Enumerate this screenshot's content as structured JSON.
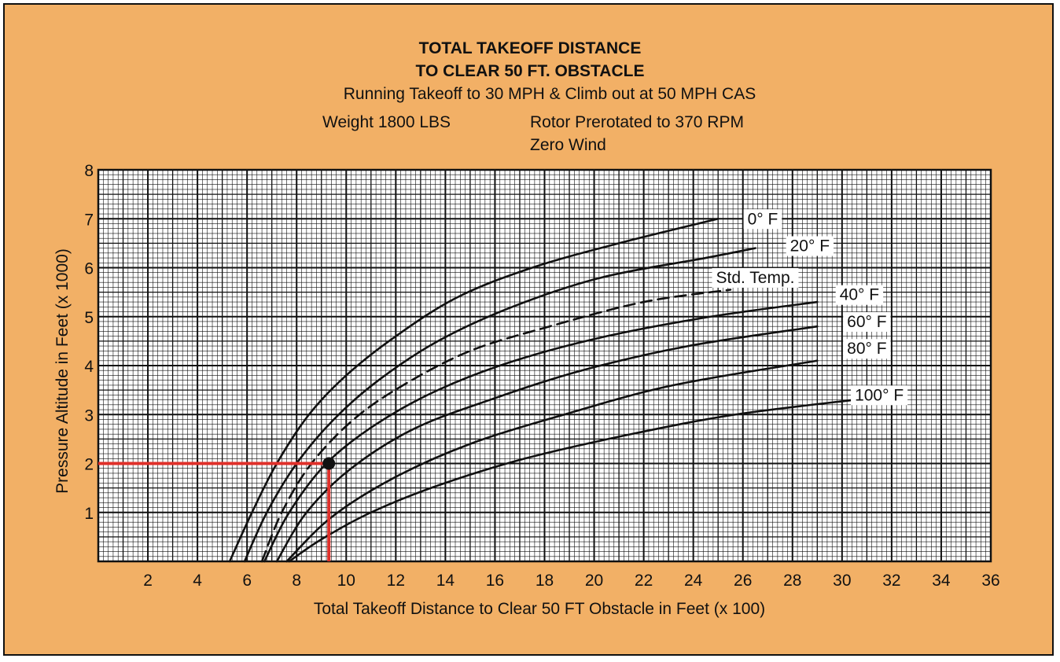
{
  "chart_data": {
    "type": "line",
    "title": [
      "TOTAL TAKEOFF DISTANCE",
      "TO CLEAR 50 FT. OBSTACLE"
    ],
    "subtitle": "Running Takeoff to 30 MPH & Climb out at 50 MPH CAS",
    "notes": {
      "weight": "Weight 1800 LBS",
      "rotor": "Rotor Prerotated to 370 RPM",
      "wind": "Zero Wind"
    },
    "xlabel": "Total Takeoff Distance to Clear 50 FT Obstacle in Feet (x 100)",
    "ylabel": "Pressure Altitude in Feet (x 1000)",
    "xlim": [
      0,
      36
    ],
    "ylim": [
      0,
      8
    ],
    "xticks": [
      2,
      4,
      6,
      8,
      10,
      12,
      14,
      16,
      18,
      20,
      22,
      24,
      26,
      28,
      30,
      32,
      34,
      36
    ],
    "yticks": [
      1,
      2,
      3,
      4,
      5,
      6,
      7,
      8
    ],
    "grid": true,
    "series": [
      {
        "name": "0° F",
        "style": "solid",
        "x": [
          5.3,
          6.2,
          7.2,
          8.5,
          10.0,
          12.0,
          14.5,
          17.5,
          21.0,
          25.0
        ],
        "y": [
          0,
          1.0,
          2.0,
          3.0,
          3.8,
          4.6,
          5.4,
          6.0,
          6.5,
          7.0
        ]
      },
      {
        "name": "20° F",
        "style": "solid",
        "x": [
          5.9,
          6.8,
          8.0,
          9.5,
          11.3,
          13.7,
          16.7,
          20.3,
          24.5,
          26.5
        ],
        "y": [
          0,
          1.0,
          2.0,
          2.9,
          3.7,
          4.5,
          5.2,
          5.8,
          6.2,
          6.4
        ]
      },
      {
        "name": "Std. Temp.",
        "style": "dashed",
        "x": [
          6.6,
          7.4,
          8.6,
          10.3,
          12.3,
          15.0,
          18.2,
          22.0,
          25.5
        ],
        "y": [
          0,
          1.0,
          2.0,
          2.9,
          3.6,
          4.3,
          4.8,
          5.3,
          5.55
        ]
      },
      {
        "name": "40° F",
        "style": "solid",
        "x": [
          6.7,
          7.7,
          9.2,
          11.2,
          13.7,
          16.8,
          20.5,
          24.7,
          29.0
        ],
        "y": [
          0,
          1.0,
          2.0,
          2.8,
          3.5,
          4.1,
          4.6,
          5.0,
          5.3
        ]
      },
      {
        "name": "60° F",
        "style": "solid",
        "x": [
          7.2,
          8.4,
          10.2,
          12.7,
          15.8,
          19.5,
          23.8,
          29.0
        ],
        "y": [
          0,
          1.0,
          1.9,
          2.7,
          3.3,
          3.9,
          4.4,
          4.8
        ]
      },
      {
        "name": "80° F",
        "style": "solid",
        "x": [
          7.6,
          9.4,
          11.9,
          15.0,
          18.8,
          23.2,
          29.0
        ],
        "y": [
          0,
          0.9,
          1.7,
          2.4,
          3.0,
          3.6,
          4.1
        ]
      },
      {
        "name": "100° F",
        "style": "solid",
        "x": [
          7.7,
          9.0,
          11.0,
          13.7,
          17.2,
          21.5,
          25.7,
          30.5
        ],
        "y": [
          0,
          0.45,
          1.0,
          1.55,
          2.1,
          2.6,
          3.0,
          3.3
        ]
      }
    ],
    "curve_labels": [
      {
        "text": "0° F",
        "x": 26.8,
        "y": 7.0
      },
      {
        "text": "20° F",
        "x": 28.7,
        "y": 6.45
      },
      {
        "text": "Std. Temp.",
        "x": 26.5,
        "y": 5.8
      },
      {
        "text": "40° F",
        "x": 30.7,
        "y": 5.45
      },
      {
        "text": "60° F",
        "x": 31.0,
        "y": 4.9
      },
      {
        "text": "80° F",
        "x": 31.0,
        "y": 4.35
      },
      {
        "text": "100° F",
        "x": 31.5,
        "y": 3.4
      }
    ],
    "example_point": {
      "x": 9.3,
      "y": 2.0,
      "color": "#e0302a"
    },
    "colors": {
      "background": "#f2b066",
      "grid_bg": "#ffffff",
      "line": "#111111",
      "highlight": "#e0302a"
    }
  }
}
